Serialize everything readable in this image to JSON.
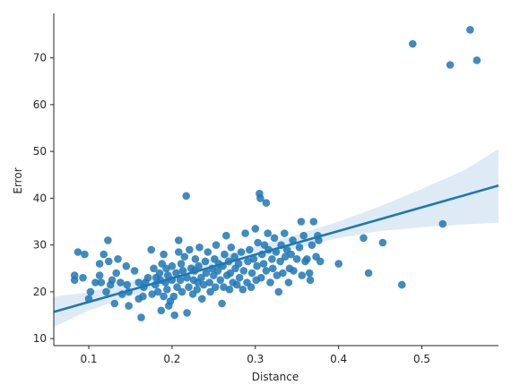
{
  "chart_data": {
    "type": "scatter",
    "title": "",
    "xlabel": "Distance",
    "ylabel": "Error",
    "xlim": [
      0.058,
      0.592
    ],
    "ylim": [
      8.5,
      79.5
    ],
    "xticks": [
      0.1,
      0.2,
      0.3,
      0.4,
      0.5
    ],
    "xtick_labels": [
      "0.1",
      "0.2",
      "0.3",
      "0.4",
      "0.5"
    ],
    "yticks": [
      10,
      20,
      30,
      40,
      50,
      60,
      70
    ],
    "ytick_labels": [
      "10",
      "20",
      "30",
      "40",
      "50",
      "60",
      "70"
    ],
    "grid": false,
    "colors": {
      "points": "#1f77b4",
      "band": "#1f77b4",
      "line": "#1f77b4"
    },
    "regression": {
      "x": [
        0.058,
        0.592
      ],
      "y": [
        15.7,
        42.7
      ]
    },
    "confidence_band": {
      "x": [
        0.058,
        0.1,
        0.15,
        0.2,
        0.25,
        0.3,
        0.35,
        0.4,
        0.45,
        0.5,
        0.55,
        0.592
      ],
      "upper": [
        19.0,
        19.9,
        22.3,
        24.9,
        27.2,
        29.7,
        32.2,
        35.0,
        38.3,
        42.0,
        45.9,
        50.5
      ],
      "lower": [
        12.5,
        16.0,
        19.0,
        22.0,
        24.5,
        27.0,
        29.3,
        31.5,
        33.0,
        33.8,
        34.4,
        34.8
      ]
    },
    "points": [
      [
        0.083,
        22.5
      ],
      [
        0.083,
        23.5
      ],
      [
        0.087,
        28.5
      ],
      [
        0.095,
        28.0
      ],
      [
        0.093,
        23.0
      ],
      [
        0.1,
        18.5
      ],
      [
        0.102,
        20.0
      ],
      [
        0.108,
        22.0
      ],
      [
        0.113,
        26.0
      ],
      [
        0.113,
        23.5
      ],
      [
        0.115,
        22.0
      ],
      [
        0.118,
        28.0
      ],
      [
        0.121,
        20.0
      ],
      [
        0.123,
        31.0
      ],
      [
        0.124,
        26.5
      ],
      [
        0.126,
        21.5
      ],
      [
        0.128,
        22.5
      ],
      [
        0.131,
        17.5
      ],
      [
        0.133,
        24.0
      ],
      [
        0.135,
        27.0
      ],
      [
        0.138,
        22.0
      ],
      [
        0.14,
        19.5
      ],
      [
        0.145,
        25.5
      ],
      [
        0.146,
        21.5
      ],
      [
        0.148,
        17.0
      ],
      [
        0.148,
        20.0
      ],
      [
        0.155,
        24.5
      ],
      [
        0.16,
        18.5
      ],
      [
        0.16,
        22.0
      ],
      [
        0.163,
        14.5
      ],
      [
        0.165,
        19.0
      ],
      [
        0.166,
        21.0
      ],
      [
        0.168,
        22.0
      ],
      [
        0.171,
        23.0
      ],
      [
        0.175,
        29.0
      ],
      [
        0.176,
        19.5
      ],
      [
        0.178,
        25.0
      ],
      [
        0.18,
        21.5
      ],
      [
        0.181,
        23.0
      ],
      [
        0.183,
        20.0
      ],
      [
        0.185,
        24.0
      ],
      [
        0.186,
        22.5
      ],
      [
        0.187,
        16.0
      ],
      [
        0.188,
        26.0
      ],
      [
        0.19,
        28.0
      ],
      [
        0.19,
        19.0
      ],
      [
        0.192,
        22.0
      ],
      [
        0.193,
        25.0
      ],
      [
        0.194,
        20.5
      ],
      [
        0.195,
        23.5
      ],
      [
        0.196,
        17.0
      ],
      [
        0.198,
        18.0
      ],
      [
        0.2,
        22.5
      ],
      [
        0.2,
        25.5
      ],
      [
        0.202,
        19.0
      ],
      [
        0.203,
        15.0
      ],
      [
        0.205,
        24.0
      ],
      [
        0.206,
        21.0
      ],
      [
        0.208,
        28.5
      ],
      [
        0.208,
        31.0
      ],
      [
        0.21,
        22.5
      ],
      [
        0.211,
        26.0
      ],
      [
        0.212,
        20.0
      ],
      [
        0.213,
        24.5
      ],
      [
        0.215,
        27.5
      ],
      [
        0.217,
        40.5
      ],
      [
        0.218,
        15.5
      ],
      [
        0.218,
        23.0
      ],
      [
        0.22,
        21.0
      ],
      [
        0.221,
        29.0
      ],
      [
        0.223,
        25.0
      ],
      [
        0.225,
        19.5
      ],
      [
        0.226,
        22.5
      ],
      [
        0.227,
        24.5
      ],
      [
        0.228,
        27.0
      ],
      [
        0.23,
        20.5
      ],
      [
        0.231,
        22.0
      ],
      [
        0.232,
        25.5
      ],
      [
        0.233,
        29.5
      ],
      [
        0.235,
        23.0
      ],
      [
        0.236,
        18.5
      ],
      [
        0.238,
        21.5
      ],
      [
        0.24,
        26.5
      ],
      [
        0.241,
        24.0
      ],
      [
        0.243,
        28.5
      ],
      [
        0.245,
        22.0
      ],
      [
        0.246,
        20.0
      ],
      [
        0.248,
        25.0
      ],
      [
        0.25,
        23.5
      ],
      [
        0.251,
        27.0
      ],
      [
        0.252,
        21.0
      ],
      [
        0.253,
        30.0
      ],
      [
        0.255,
        24.5
      ],
      [
        0.256,
        26.0
      ],
      [
        0.258,
        22.5
      ],
      [
        0.26,
        17.5
      ],
      [
        0.261,
        25.5
      ],
      [
        0.262,
        21.0
      ],
      [
        0.263,
        28.0
      ],
      [
        0.265,
        32.0
      ],
      [
        0.266,
        23.5
      ],
      [
        0.268,
        26.5
      ],
      [
        0.269,
        20.5
      ],
      [
        0.27,
        24.0
      ],
      [
        0.271,
        29.5
      ],
      [
        0.273,
        22.0
      ],
      [
        0.275,
        27.5
      ],
      [
        0.276,
        25.0
      ],
      [
        0.278,
        21.5
      ],
      [
        0.28,
        26.0
      ],
      [
        0.281,
        23.0
      ],
      [
        0.283,
        28.5
      ],
      [
        0.285,
        20.5
      ],
      [
        0.286,
        24.5
      ],
      [
        0.288,
        32.5
      ],
      [
        0.29,
        22.0
      ],
      [
        0.291,
        26.5
      ],
      [
        0.293,
        29.0
      ],
      [
        0.295,
        21.0
      ],
      [
        0.296,
        24.0
      ],
      [
        0.298,
        27.0
      ],
      [
        0.3,
        33.5
      ],
      [
        0.301,
        22.5
      ],
      [
        0.302,
        25.5
      ],
      [
        0.303,
        30.5
      ],
      [
        0.305,
        41.0
      ],
      [
        0.306,
        40.0
      ],
      [
        0.307,
        23.0
      ],
      [
        0.308,
        28.0
      ],
      [
        0.31,
        26.0
      ],
      [
        0.311,
        30.0
      ],
      [
        0.313,
        39.0
      ],
      [
        0.313,
        24.5
      ],
      [
        0.315,
        32.5
      ],
      [
        0.316,
        29.0
      ],
      [
        0.318,
        22.0
      ],
      [
        0.32,
        27.0
      ],
      [
        0.321,
        25.0
      ],
      [
        0.323,
        31.5
      ],
      [
        0.325,
        28.5
      ],
      [
        0.326,
        23.5
      ],
      [
        0.328,
        20.0
      ],
      [
        0.33,
        26.5
      ],
      [
        0.331,
        30.0
      ],
      [
        0.333,
        24.0
      ],
      [
        0.335,
        32.5
      ],
      [
        0.336,
        27.5
      ],
      [
        0.338,
        29.0
      ],
      [
        0.34,
        22.0
      ],
      [
        0.341,
        25.0
      ],
      [
        0.343,
        28.0
      ],
      [
        0.345,
        31.0
      ],
      [
        0.346,
        24.5
      ],
      [
        0.35,
        27.0
      ],
      [
        0.353,
        29.5
      ],
      [
        0.355,
        35.0
      ],
      [
        0.356,
        23.5
      ],
      [
        0.358,
        32.0
      ],
      [
        0.36,
        26.5
      ],
      [
        0.362,
        27.0
      ],
      [
        0.365,
        24.0
      ],
      [
        0.366,
        22.5
      ],
      [
        0.368,
        30.0
      ],
      [
        0.37,
        35.0
      ],
      [
        0.373,
        27.5
      ],
      [
        0.375,
        32.0
      ],
      [
        0.376,
        31.0
      ],
      [
        0.378,
        26.5
      ],
      [
        0.4,
        26.0
      ],
      [
        0.43,
        31.5
      ],
      [
        0.436,
        24.0
      ],
      [
        0.453,
        30.5
      ],
      [
        0.476,
        21.5
      ],
      [
        0.489,
        73.0
      ],
      [
        0.525,
        34.5
      ],
      [
        0.534,
        68.5
      ],
      [
        0.558,
        76.0
      ],
      [
        0.566,
        69.5
      ]
    ]
  }
}
